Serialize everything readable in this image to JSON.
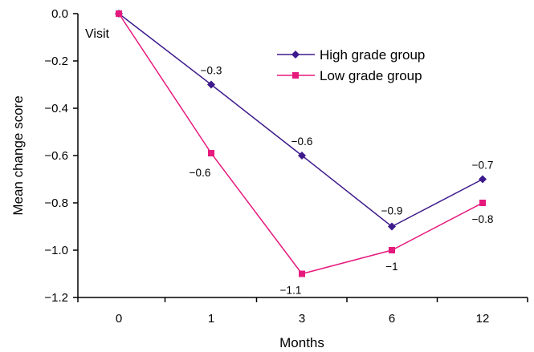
{
  "chart_data": {
    "type": "line",
    "categories": [
      "0",
      "1",
      "3",
      "6",
      "12"
    ],
    "series": [
      {
        "name": "High grade group",
        "color": "#3d1a8c",
        "marker": "diamond",
        "values": [
          0.0,
          -0.3,
          -0.6,
          -0.9,
          -0.7
        ],
        "labels": [
          "",
          "−0.3",
          "−0.6",
          "−0.9",
          "−0.7"
        ]
      },
      {
        "name": "Low grade group",
        "color": "#e6197d",
        "marker": "square",
        "values": [
          0.0,
          -0.59,
          -1.1,
          -1.0,
          -0.8
        ],
        "labels": [
          "",
          "−0.6",
          "−1.1",
          "−1",
          "−0.8"
        ]
      }
    ],
    "xlabel": "Months",
    "ylabel": "Mean change score",
    "annotation": "Visit",
    "ylim": [
      -1.2,
      0.0
    ],
    "yticks": [
      "0.0",
      "−0.2",
      "−0.4",
      "−0.6",
      "−0.8",
      "−1.0",
      "−1.2"
    ],
    "ytick_values": [
      0.0,
      -0.2,
      -0.4,
      -0.6,
      -0.8,
      -1.0,
      -1.2
    ],
    "grid": false,
    "legend_position": "top-right"
  }
}
